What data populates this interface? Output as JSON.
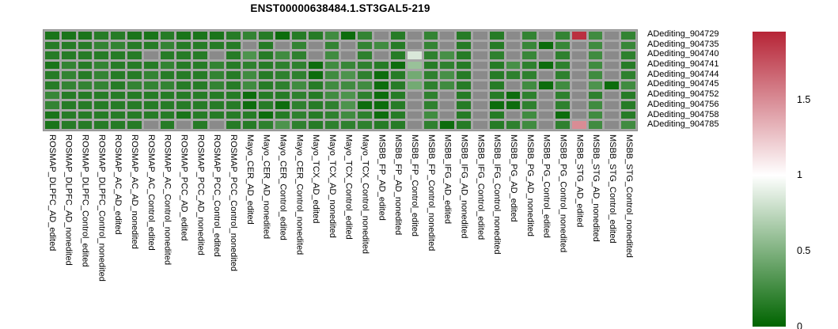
{
  "title": "ENST00000638484.1.ST3GAL5-219",
  "chart_data": {
    "type": "heatmap",
    "title": "ENST00000638484.1.ST3GAL5-219",
    "rows": [
      "ADediting_904729",
      "ADediting_904735",
      "ADediting_904740",
      "ADediting_904741",
      "ADediting_904744",
      "ADediting_904745",
      "ADediting_904752",
      "ADediting_904756",
      "ADediting_904758",
      "ADediting_904785"
    ],
    "columns": [
      "ROSMAP_DLPFC_AD_edited",
      "ROSMAP_DLPFC_AD_nonedited",
      "ROSMAP_DLPFC_Control_edited",
      "ROSMAP_DLPFC_Control_nonedited",
      "ROSMAP_AC_AD_edited",
      "ROSMAP_AC_AD_nonedited",
      "ROSMAP_AC_Control_edited",
      "ROSMAP_AC_Control_nonedited",
      "ROSMAP_PCC_AD_edited",
      "ROSMAP_PCC_AD_nonedited",
      "ROSMAP_PCC_Control_edited",
      "ROSMAP_PCC_Control_nonedited",
      "Mayo_CER_AD_edited",
      "Mayo_CER_AD_nonedited",
      "Mayo_CER_Control_edited",
      "Mayo_CER_Control_nonedited",
      "Mayo_TCX_AD_edited",
      "Mayo_TCX_AD_nonedited",
      "Mayo_TCX_Control_edited",
      "Mayo_TCX_Control_nonedited",
      "MSBB_FP_AD_edited",
      "MSBB_FP_AD_nonedited",
      "MSBB_FP_Control_edited",
      "MSBB_FP_Control_nonedited",
      "MSBB_IFG_AD_edited",
      "MSBB_IFG_AD_nonedited",
      "MSBB_IFG_Control_edited",
      "MSBB_IFG_Control_nonedited",
      "MSBB_PG_AD_edited",
      "MSBB_PG_AD_nonedited",
      "MSBB_PG_Control_edited",
      "MSBB_PG_Control_nonedited",
      "MSBB_STG_AD_edited",
      "MSBB_STG_AD_nonedited",
      "MSBB_STG_Control_edited",
      "MSBB_STG_Control_nonedited"
    ],
    "values": [
      [
        0.1,
        0.1,
        0.1,
        0.15,
        0.15,
        0.1,
        0.1,
        0.15,
        0.1,
        0.1,
        0.1,
        0.15,
        0.2,
        0.15,
        0.05,
        0.15,
        0.15,
        0.25,
        0.05,
        0.2,
        null,
        0.15,
        null,
        0.2,
        null,
        0.15,
        null,
        0.15,
        null,
        0.2,
        null,
        0.2,
        1.9,
        0.25,
        null,
        0.2
      ],
      [
        0.15,
        0.15,
        0.15,
        0.2,
        0.2,
        0.15,
        0.15,
        0.2,
        0.15,
        0.15,
        0.15,
        0.15,
        null,
        0.15,
        null,
        0.2,
        null,
        0.2,
        null,
        0.2,
        0.25,
        0.15,
        null,
        0.2,
        null,
        0.15,
        null,
        0.15,
        null,
        0.22,
        0.05,
        0.22,
        null,
        0.25,
        null,
        0.22
      ],
      [
        0.15,
        0.15,
        0.15,
        0.15,
        0.15,
        0.15,
        null,
        0.15,
        0.15,
        0.15,
        null,
        0.15,
        0.3,
        0.15,
        0.25,
        0.18,
        null,
        0.25,
        null,
        0.18,
        null,
        0.15,
        0.85,
        0.18,
        0.28,
        0.15,
        null,
        0.18,
        null,
        0.22,
        null,
        0.18,
        null,
        0.25,
        null,
        0.18
      ],
      [
        0.1,
        0.2,
        0.15,
        0.2,
        0.15,
        0.15,
        0.15,
        0.2,
        0.15,
        0.15,
        0.2,
        0.15,
        0.18,
        0.15,
        0.18,
        0.18,
        0.05,
        0.25,
        0.22,
        0.18,
        0.15,
        0.05,
        0.6,
        0.15,
        0.18,
        0.15,
        null,
        0.15,
        0.28,
        0.18,
        0.05,
        0.18,
        null,
        0.25,
        null,
        0.15
      ],
      [
        0.15,
        0.2,
        0.15,
        0.2,
        0.15,
        0.15,
        0.2,
        0.15,
        0.15,
        0.15,
        0.2,
        0.15,
        0.25,
        0.15,
        0.18,
        0.18,
        0.05,
        0.25,
        0.3,
        0.18,
        0.05,
        0.15,
        0.45,
        0.18,
        0.28,
        0.15,
        null,
        0.15,
        0.18,
        0.18,
        null,
        0.18,
        null,
        0.25,
        null,
        0.18
      ],
      [
        0.15,
        0.2,
        0.2,
        0.2,
        0.15,
        0.2,
        0.2,
        0.2,
        0.15,
        0.15,
        0.2,
        0.15,
        0.25,
        0.15,
        0.18,
        0.25,
        0.15,
        0.25,
        0.25,
        0.25,
        0.05,
        0.15,
        0.45,
        0.18,
        0.25,
        0.15,
        null,
        0.15,
        null,
        0.25,
        0.05,
        0.25,
        null,
        0.3,
        0.05,
        0.25
      ],
      [
        0.22,
        0.15,
        0.15,
        0.15,
        0.15,
        0.15,
        0.15,
        0.15,
        0.15,
        0.15,
        0.15,
        0.15,
        0.05,
        0.15,
        0.15,
        0.18,
        0.15,
        0.25,
        0.3,
        0.18,
        0.05,
        0.15,
        null,
        0.18,
        null,
        0.15,
        null,
        0.15,
        0.05,
        0.18,
        null,
        0.18,
        null,
        0.18,
        null,
        0.15
      ],
      [
        0.2,
        0.15,
        0.15,
        0.15,
        0.15,
        0.15,
        0.15,
        0.15,
        0.15,
        0.15,
        0.15,
        0.15,
        0.05,
        0.15,
        0.05,
        0.18,
        0.15,
        0.18,
        0.3,
        0.05,
        0.05,
        0.15,
        null,
        0.18,
        null,
        0.15,
        null,
        0.05,
        0.05,
        0.18,
        null,
        0.18,
        null,
        0.25,
        null,
        0.15
      ],
      [
        0.1,
        0.15,
        0.15,
        0.15,
        0.15,
        0.15,
        0.15,
        0.15,
        0.1,
        0.15,
        0.15,
        0.15,
        0.15,
        0.05,
        0.15,
        0.18,
        0.15,
        0.18,
        0.25,
        0.18,
        0.05,
        0.15,
        null,
        0.25,
        null,
        0.15,
        null,
        0.15,
        null,
        0.25,
        null,
        0.05,
        null,
        0.25,
        null,
        0.15
      ],
      [
        0.1,
        0.15,
        0.15,
        0.15,
        0.15,
        0.15,
        null,
        0.15,
        null,
        0.15,
        null,
        0.15,
        0.15,
        0.18,
        0.3,
        0.18,
        0.15,
        0.18,
        0.18,
        0.18,
        0.15,
        0.15,
        null,
        0.18,
        0.05,
        0.15,
        null,
        0.15,
        0.18,
        0.25,
        null,
        0.18,
        1.5,
        0.25,
        null,
        0.25
      ]
    ],
    "na_color": "#8a8a8a",
    "grid_color": "#a6a6a6",
    "scale": {
      "min": 0,
      "mid": 1,
      "max": 1.95,
      "low_color": "#006400",
      "mid_color": "#ffffff",
      "high_color": "#b2182b"
    },
    "colorbar_ticks": [
      {
        "label": "1.5",
        "value": 1.5
      },
      {
        "label": "1",
        "value": 1
      },
      {
        "label": "0.5",
        "value": 0.5
      },
      {
        "label": "0",
        "value": 0
      }
    ],
    "legend_position": "right",
    "grid": true
  }
}
